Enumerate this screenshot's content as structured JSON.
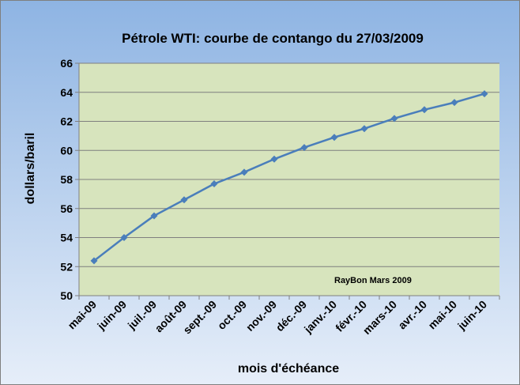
{
  "chart_data": {
    "type": "line",
    "title": "Pétrole WTI: courbe de contango du 27/03/2009",
    "xlabel": "mois d'échéance",
    "ylabel": "dollars/baril",
    "annotation": "RayBon Mars 2009",
    "ylim": [
      50,
      66
    ],
    "y_ticks": [
      50,
      52,
      54,
      56,
      58,
      60,
      62,
      64,
      66
    ],
    "grid": true,
    "legend": "none",
    "categories": [
      "mai-09",
      "juin-09",
      "juil.-09",
      "août-09",
      "sept.-09",
      "oct.-09",
      "nov.-09",
      "déc.-09",
      "janv.-10",
      "févr.-10",
      "mars-10",
      "avr.-10",
      "mai-10",
      "juin-10"
    ],
    "series": [
      {
        "values": [
          52.4,
          54.0,
          55.5,
          56.6,
          57.7,
          58.5,
          59.4,
          60.2,
          60.9,
          61.5,
          62.2,
          62.8,
          63.3,
          63.9
        ],
        "color": "#4a7ebb"
      }
    ],
    "colors": {
      "background_top": "#8eb4e3",
      "background_bottom": "#e6eef9",
      "plot_area": "#d7e4bd",
      "grid": "#7f7f7f",
      "line": "#4a7ebb"
    }
  }
}
